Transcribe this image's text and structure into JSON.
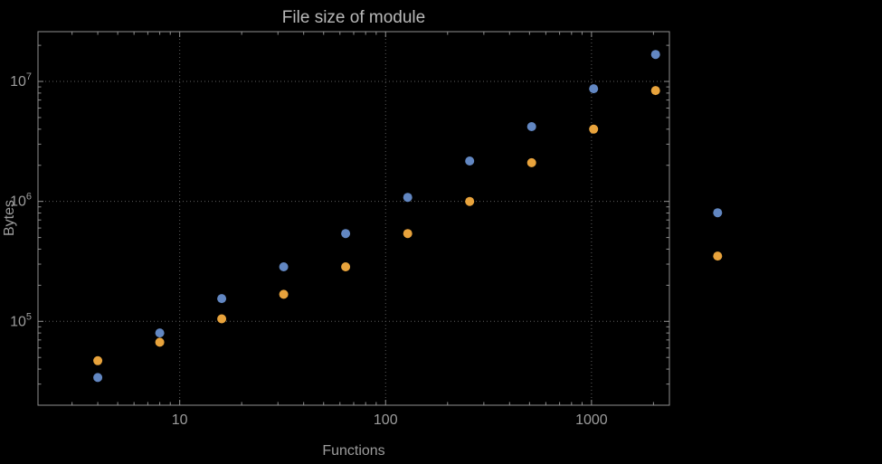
{
  "chart": {
    "title": "File size of module",
    "xlabel": "Functions",
    "ylabel": "Bytes"
  },
  "colors": {
    "background": "#000000",
    "frame": "#8f8f8f",
    "grid": "#5f5f5f",
    "tick_text": "#9c9c9c",
    "title_text": "#b8b8b8",
    "series_blue": "#6287c2",
    "series_orange": "#e8a33c"
  },
  "chart_data": {
    "type": "scatter",
    "title": "File size of module",
    "xlabel": "Functions",
    "ylabel": "Bytes",
    "x_scale": "log",
    "y_scale": "log",
    "grid": "dotted",
    "legend": "none",
    "marker_radius": 5,
    "x": [
      4,
      8,
      16,
      32,
      64,
      128,
      256,
      512,
      1024,
      2048,
      4096
    ],
    "series": [
      {
        "name": "blue-series",
        "color": "#6287c2",
        "values": [
          34000,
          80000,
          155000,
          285000,
          540000,
          1080000,
          2170000,
          4200000,
          8700000,
          16800000,
          805000
        ]
      },
      {
        "name": "orange-series",
        "color": "#e8a33c",
        "values": [
          47000,
          67000,
          105000,
          168000,
          285000,
          540000,
          1000000,
          2100000,
          4000000,
          8400000,
          350000
        ]
      }
    ],
    "x_ticks": [
      {
        "value": 10,
        "label": "10"
      },
      {
        "value": 100,
        "label": "100"
      },
      {
        "value": 1000,
        "label": "1000"
      }
    ],
    "y_ticks": [
      {
        "value": 100000,
        "base": "10",
        "exp": "5"
      },
      {
        "value": 1000000,
        "base": "10",
        "exp": "6"
      },
      {
        "value": 10000000,
        "base": "10",
        "exp": "7"
      }
    ],
    "xlim": [
      2.05,
      2390
    ],
    "ylim": [
      20000,
      26000000
    ]
  }
}
